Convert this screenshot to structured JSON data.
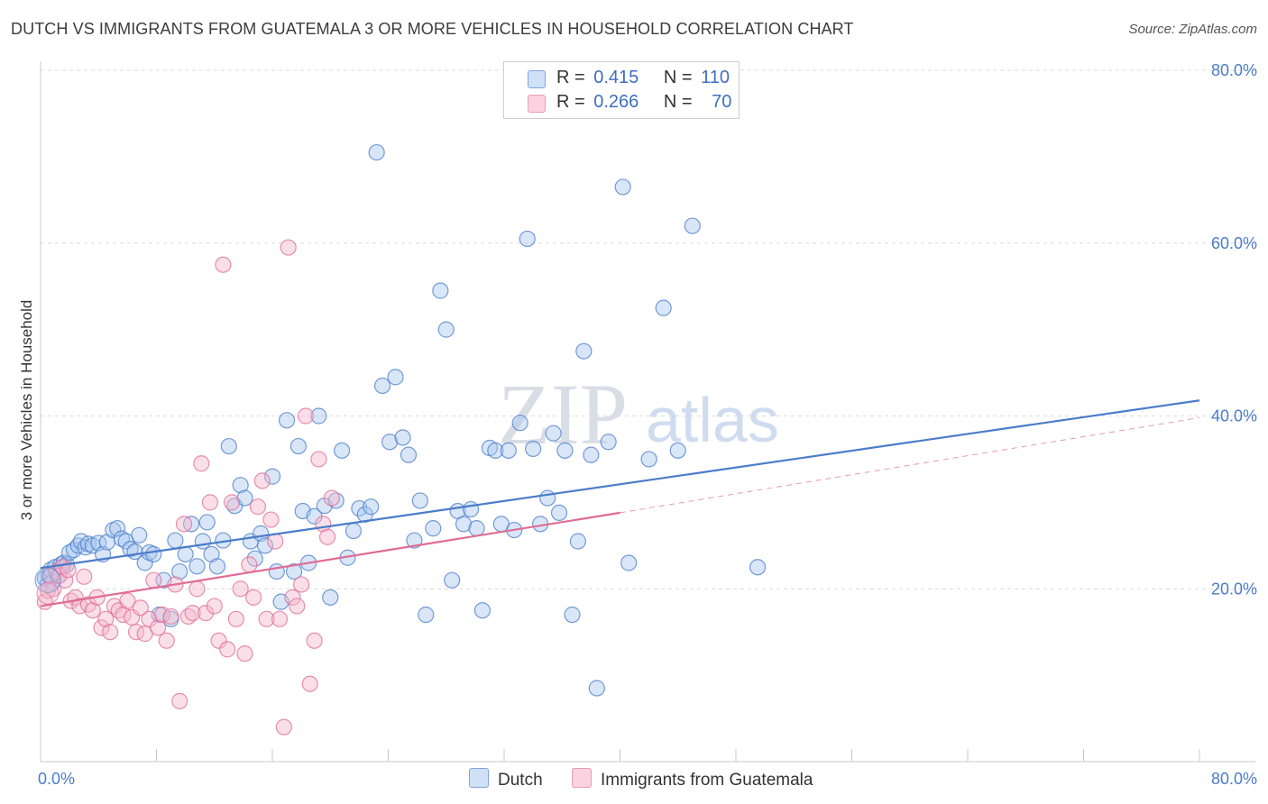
{
  "title": "DUTCH VS IMMIGRANTS FROM GUATEMALA 3 OR MORE VEHICLES IN HOUSEHOLD CORRELATION CHART",
  "source": "Source: ZipAtlas.com",
  "watermark": {
    "zip": "ZIP",
    "atlas": "atlas"
  },
  "stats": [
    {
      "r_label": "R =",
      "r_value": "0.415",
      "n_label": "N =",
      "n_value": "110",
      "color": "#a9c8f0"
    },
    {
      "r_label": "R =",
      "r_value": "0.266",
      "n_label": "N =",
      "n_value": "70",
      "color": "#f5b8cc"
    }
  ],
  "chart_data": {
    "type": "scatter",
    "title": "DUTCH VS IMMIGRANTS FROM GUATEMALA 3 OR MORE VEHICLES IN HOUSEHOLD CORRELATION CHART",
    "xlabel": "",
    "ylabel": "3 or more Vehicles in Household",
    "xlim": [
      0,
      80
    ],
    "ylim": [
      0,
      80
    ],
    "x_tick_labels": [
      "0.0%",
      "80.0%"
    ],
    "y_ticks": [
      20,
      40,
      60,
      80
    ],
    "y_tick_labels": [
      "20.0%",
      "40.0%",
      "60.0%",
      "80.0%"
    ],
    "grid": true,
    "legend": "bottom-center",
    "series": [
      {
        "name": "Dutch",
        "color": "#4a7cc9",
        "fill": "#a9c8f0",
        "trend": {
          "x": [
            0,
            80
          ],
          "y": [
            22.4,
            41.8
          ]
        },
        "points": [
          [
            0.3,
            21.2
          ],
          [
            0.5,
            20.5
          ],
          [
            0.6,
            21.5
          ],
          [
            0.7,
            22.2
          ],
          [
            0.8,
            20.8
          ],
          [
            1.0,
            22.5
          ],
          [
            1.2,
            21.5
          ],
          [
            1.4,
            22.8
          ],
          [
            1.6,
            23.0
          ],
          [
            1.8,
            22.8
          ],
          [
            2.0,
            24.2
          ],
          [
            2.3,
            24.5
          ],
          [
            2.6,
            25.0
          ],
          [
            2.8,
            25.5
          ],
          [
            3.1,
            24.8
          ],
          [
            3.3,
            25.2
          ],
          [
            3.6,
            25.0
          ],
          [
            4.0,
            25.3
          ],
          [
            4.3,
            24.0
          ],
          [
            4.6,
            25.4
          ],
          [
            5.0,
            26.8
          ],
          [
            5.3,
            27.0
          ],
          [
            5.6,
            25.8
          ],
          [
            5.9,
            25.5
          ],
          [
            6.2,
            24.6
          ],
          [
            6.5,
            24.3
          ],
          [
            6.8,
            26.2
          ],
          [
            7.2,
            23.0
          ],
          [
            7.5,
            24.2
          ],
          [
            7.8,
            24.0
          ],
          [
            8.2,
            17.0
          ],
          [
            8.5,
            21.0
          ],
          [
            9.0,
            16.5
          ],
          [
            9.3,
            25.6
          ],
          [
            9.6,
            22.0
          ],
          [
            10.0,
            24.0
          ],
          [
            10.4,
            27.5
          ],
          [
            10.8,
            22.6
          ],
          [
            11.2,
            25.5
          ],
          [
            11.5,
            27.7
          ],
          [
            11.8,
            24.0
          ],
          [
            12.2,
            22.6
          ],
          [
            12.6,
            25.6
          ],
          [
            13.0,
            36.5
          ],
          [
            13.4,
            29.6
          ],
          [
            13.8,
            32.0
          ],
          [
            14.1,
            30.5
          ],
          [
            14.5,
            25.5
          ],
          [
            14.8,
            23.5
          ],
          [
            15.2,
            26.4
          ],
          [
            15.5,
            25.0
          ],
          [
            16.0,
            33.0
          ],
          [
            16.3,
            22.0
          ],
          [
            16.6,
            18.5
          ],
          [
            17.0,
            39.5
          ],
          [
            17.5,
            22.0
          ],
          [
            17.8,
            36.5
          ],
          [
            18.1,
            29.0
          ],
          [
            18.5,
            23.0
          ],
          [
            18.9,
            28.4
          ],
          [
            19.2,
            40.0
          ],
          [
            19.6,
            29.6
          ],
          [
            20.0,
            19.0
          ],
          [
            20.4,
            30.2
          ],
          [
            20.8,
            36.0
          ],
          [
            21.2,
            23.6
          ],
          [
            21.6,
            26.7
          ],
          [
            22.0,
            29.3
          ],
          [
            22.4,
            28.6
          ],
          [
            22.8,
            29.5
          ],
          [
            23.2,
            70.5
          ],
          [
            23.6,
            43.5
          ],
          [
            24.1,
            37.0
          ],
          [
            24.5,
            44.5
          ],
          [
            25.0,
            37.5
          ],
          [
            25.4,
            35.5
          ],
          [
            25.8,
            25.6
          ],
          [
            26.2,
            30.2
          ],
          [
            26.6,
            17.0
          ],
          [
            27.1,
            27.0
          ],
          [
            27.6,
            54.5
          ],
          [
            28.0,
            50.0
          ],
          [
            28.4,
            21.0
          ],
          [
            28.8,
            29.0
          ],
          [
            29.2,
            27.5
          ],
          [
            29.7,
            29.2
          ],
          [
            30.1,
            27.0
          ],
          [
            30.5,
            17.5
          ],
          [
            31.0,
            36.3
          ],
          [
            31.4,
            36.0
          ],
          [
            31.8,
            27.5
          ],
          [
            32.3,
            36.0
          ],
          [
            32.7,
            26.8
          ],
          [
            33.1,
            39.2
          ],
          [
            33.6,
            60.5
          ],
          [
            34.0,
            36.2
          ],
          [
            34.5,
            27.5
          ],
          [
            35.0,
            30.5
          ],
          [
            35.4,
            38.0
          ],
          [
            35.8,
            28.8
          ],
          [
            36.2,
            36.0
          ],
          [
            36.7,
            17.0
          ],
          [
            37.1,
            25.5
          ],
          [
            37.5,
            47.5
          ],
          [
            38.0,
            35.5
          ],
          [
            38.4,
            8.5
          ],
          [
            39.2,
            37.0
          ],
          [
            40.2,
            66.5
          ],
          [
            40.6,
            23.0
          ],
          [
            42.0,
            35.0
          ],
          [
            43.0,
            52.5
          ],
          [
            44.0,
            36.0
          ],
          [
            45.0,
            62.0
          ],
          [
            49.5,
            22.5
          ]
        ]
      },
      {
        "name": "Immigrants from Guatemala",
        "color": "#e06c94",
        "fill": "#f5b8cc",
        "trend": {
          "x": [
            0,
            40
          ],
          "y": [
            18.0,
            28.8
          ]
        },
        "trend_ext": {
          "x": [
            40,
            80
          ],
          "y": [
            28.8,
            39.8
          ]
        },
        "points": [
          [
            0.3,
            18.5
          ],
          [
            0.5,
            19.8
          ],
          [
            0.7,
            21.5
          ],
          [
            0.9,
            20.0
          ],
          [
            1.1,
            22.0
          ],
          [
            1.3,
            21.5
          ],
          [
            1.5,
            22.5
          ],
          [
            1.7,
            21.0
          ],
          [
            1.9,
            22.2
          ],
          [
            2.1,
            18.6
          ],
          [
            2.4,
            19.0
          ],
          [
            2.7,
            18.0
          ],
          [
            3.0,
            21.4
          ],
          [
            3.3,
            18.2
          ],
          [
            3.6,
            17.5
          ],
          [
            3.9,
            19.0
          ],
          [
            4.2,
            15.5
          ],
          [
            4.5,
            16.5
          ],
          [
            4.8,
            15.0
          ],
          [
            5.1,
            18.0
          ],
          [
            5.4,
            17.5
          ],
          [
            5.7,
            17.0
          ],
          [
            6.0,
            18.6
          ],
          [
            6.3,
            16.7
          ],
          [
            6.6,
            15.0
          ],
          [
            6.9,
            17.8
          ],
          [
            7.2,
            14.8
          ],
          [
            7.5,
            16.5
          ],
          [
            7.8,
            21.0
          ],
          [
            8.1,
            15.5
          ],
          [
            8.4,
            17.0
          ],
          [
            8.7,
            14.0
          ],
          [
            9.0,
            16.8
          ],
          [
            9.3,
            20.5
          ],
          [
            9.6,
            7.0
          ],
          [
            9.9,
            27.5
          ],
          [
            10.2,
            16.8
          ],
          [
            10.5,
            17.2
          ],
          [
            10.8,
            20.0
          ],
          [
            11.1,
            34.5
          ],
          [
            11.4,
            17.2
          ],
          [
            11.7,
            30.0
          ],
          [
            12.0,
            18.0
          ],
          [
            12.3,
            14.0
          ],
          [
            12.6,
            57.5
          ],
          [
            12.9,
            13.0
          ],
          [
            13.2,
            30.0
          ],
          [
            13.5,
            16.5
          ],
          [
            13.8,
            20.0
          ],
          [
            14.1,
            12.5
          ],
          [
            14.4,
            22.8
          ],
          [
            14.7,
            19.0
          ],
          [
            15.0,
            29.5
          ],
          [
            15.3,
            32.5
          ],
          [
            15.6,
            16.5
          ],
          [
            15.9,
            28.0
          ],
          [
            16.2,
            25.5
          ],
          [
            16.5,
            16.5
          ],
          [
            16.8,
            4.0
          ],
          [
            17.1,
            59.5
          ],
          [
            17.4,
            19.0
          ],
          [
            17.7,
            18.0
          ],
          [
            18.0,
            20.5
          ],
          [
            18.3,
            40.0
          ],
          [
            18.6,
            9.0
          ],
          [
            18.9,
            14.0
          ],
          [
            19.2,
            35.0
          ],
          [
            19.5,
            27.5
          ],
          [
            19.8,
            26.0
          ],
          [
            20.1,
            30.5
          ]
        ]
      }
    ]
  }
}
